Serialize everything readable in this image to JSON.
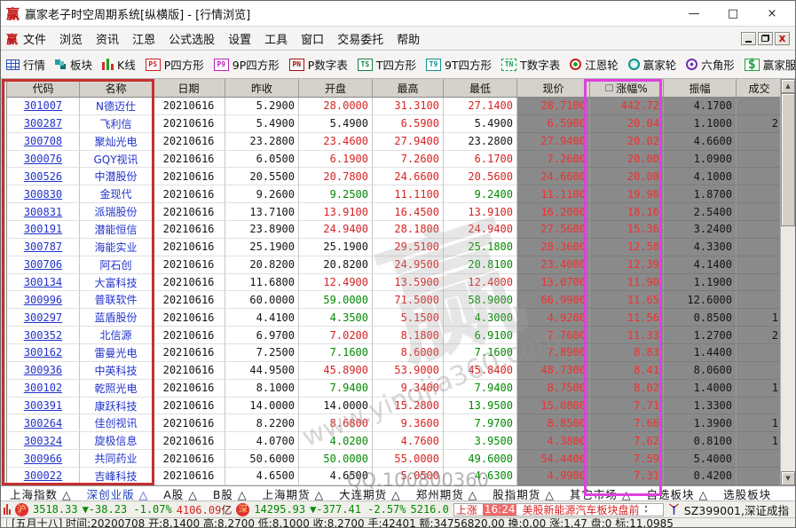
{
  "window": {
    "icon_glyph": "赢",
    "title": "赢家老子时空周期系统[纵横版] - [行情浏览]",
    "controls": {
      "minimize": "—",
      "maximize": "□",
      "close": "×"
    }
  },
  "menu": {
    "items": [
      "文件",
      "浏览",
      "资讯",
      "江恩",
      "公式选股",
      "设置",
      "工具",
      "窗口",
      "交易委托",
      "帮助"
    ]
  },
  "toolbar": {
    "items": [
      {
        "icon": "quotes-grid-icon",
        "style": "i-grid",
        "text": "",
        "label": "行情"
      },
      {
        "icon": "blocks-icon",
        "style": "i-blocks",
        "text": "",
        "label": "板块"
      },
      {
        "icon": "kline-icon",
        "style": "i-candle",
        "text": "",
        "label": "K线"
      },
      {
        "icon": "ps-square-icon",
        "style": "i-ps",
        "text": "PS",
        "label": "P四方形"
      },
      {
        "icon": "p9-square-icon",
        "style": "i-p9",
        "text": "P9",
        "label": "9P四方形"
      },
      {
        "icon": "pn-table-icon",
        "style": "i-pn",
        "text": "PN",
        "label": "P数字表"
      },
      {
        "icon": "ts-square-icon",
        "style": "i-ts",
        "text": "TS",
        "label": "T四方形"
      },
      {
        "icon": "t9-square-icon",
        "style": "i-t9",
        "text": "T9",
        "label": "9T四方形"
      },
      {
        "icon": "tn-table-icon",
        "style": "i-tn",
        "text": "TN",
        "label": "T数字表"
      },
      {
        "icon": "gann-wheel-icon",
        "style": "i-wheel",
        "text": "",
        "label": "江恩轮"
      },
      {
        "icon": "winner-wheel-icon",
        "style": "i-bwheel",
        "text": "",
        "label": "赢家轮"
      },
      {
        "icon": "hexagon-icon",
        "style": "i-hex",
        "text": "",
        "label": "六角形"
      },
      {
        "icon": "dollar-icon",
        "style": "i-dollar",
        "text": "$",
        "label": "赢家服务"
      }
    ]
  },
  "table": {
    "headers": [
      "代码",
      "名称",
      "日期",
      "昨收",
      "开盘",
      "最高",
      "最低",
      "现价",
      "涨幅%",
      "振幅",
      "成交"
    ],
    "rows": [
      {
        "code": "301007",
        "name": "N德迈仕",
        "date": "20210616",
        "prev": "5.2900",
        "open": "28.0000",
        "open_c": "r",
        "high": "31.3100",
        "low": "27.1400",
        "low_c": "r",
        "price": "28.7100",
        "chg": "442.72",
        "amp": "4.1700",
        "vol": ""
      },
      {
        "code": "300287",
        "name": "飞利信",
        "date": "20210616",
        "prev": "5.4900",
        "open": "5.4900",
        "open_c": "k",
        "high": "6.5900",
        "low": "5.4900",
        "low_c": "k",
        "price": "6.5900",
        "chg": "20.04",
        "amp": "1.1000",
        "vol": "2"
      },
      {
        "code": "300708",
        "name": "聚灿光电",
        "date": "20210616",
        "prev": "23.2800",
        "open": "23.4600",
        "open_c": "r",
        "high": "27.9400",
        "low": "23.2800",
        "low_c": "k",
        "price": "27.9400",
        "chg": "20.02",
        "amp": "4.6600",
        "vol": ""
      },
      {
        "code": "300076",
        "name": "GQY视讯",
        "date": "20210616",
        "prev": "6.0500",
        "open": "6.1900",
        "open_c": "r",
        "high": "7.2600",
        "low": "6.1700",
        "low_c": "r",
        "price": "7.2600",
        "chg": "20.00",
        "amp": "1.0900",
        "vol": ""
      },
      {
        "code": "300526",
        "name": "中潜股份",
        "date": "20210616",
        "prev": "20.5500",
        "open": "20.7800",
        "open_c": "r",
        "high": "24.6600",
        "low": "20.5600",
        "low_c": "r",
        "price": "24.6600",
        "chg": "20.00",
        "amp": "4.1000",
        "vol": ""
      },
      {
        "code": "300830",
        "name": "金现代",
        "date": "20210616",
        "prev": "9.2600",
        "open": "9.2500",
        "open_c": "g",
        "high": "11.1100",
        "low": "9.2400",
        "low_c": "g",
        "price": "11.1100",
        "chg": "19.98",
        "amp": "1.8700",
        "vol": ""
      },
      {
        "code": "300831",
        "name": "派瑞股份",
        "date": "20210616",
        "prev": "13.7100",
        "open": "13.9100",
        "open_c": "r",
        "high": "16.4500",
        "low": "13.9100",
        "low_c": "r",
        "price": "16.2000",
        "chg": "18.16",
        "amp": "2.5400",
        "vol": ""
      },
      {
        "code": "300191",
        "name": "潜能恒信",
        "date": "20210616",
        "prev": "23.8900",
        "open": "24.9400",
        "open_c": "r",
        "high": "28.1800",
        "low": "24.9400",
        "low_c": "r",
        "price": "27.5600",
        "chg": "15.36",
        "amp": "3.2400",
        "vol": ""
      },
      {
        "code": "300787",
        "name": "海能实业",
        "date": "20210616",
        "prev": "25.1900",
        "open": "25.1900",
        "open_c": "k",
        "high": "29.5100",
        "low": "25.1800",
        "low_c": "g",
        "price": "28.3600",
        "chg": "12.58",
        "amp": "4.3300",
        "vol": ""
      },
      {
        "code": "300706",
        "name": "阿石创",
        "date": "20210616",
        "prev": "20.8200",
        "open": "20.8200",
        "open_c": "k",
        "high": "24.9500",
        "low": "20.8100",
        "low_c": "g",
        "price": "23.4000",
        "chg": "12.39",
        "amp": "4.1400",
        "vol": ""
      },
      {
        "code": "300134",
        "name": "大富科技",
        "date": "20210616",
        "prev": "11.6800",
        "open": "12.4900",
        "open_c": "r",
        "high": "13.5900",
        "low": "12.4000",
        "low_c": "r",
        "price": "13.0700",
        "chg": "11.90",
        "amp": "1.1900",
        "vol": ""
      },
      {
        "code": "300996",
        "name": "普联软件",
        "date": "20210616",
        "prev": "60.0000",
        "open": "59.0000",
        "open_c": "g",
        "high": "71.5000",
        "low": "58.9000",
        "low_c": "g",
        "price": "66.9900",
        "chg": "11.65",
        "amp": "12.6000",
        "vol": ""
      },
      {
        "code": "300297",
        "name": "蓝盾股份",
        "date": "20210616",
        "prev": "4.4100",
        "open": "4.3500",
        "open_c": "g",
        "high": "5.1500",
        "low": "4.3000",
        "low_c": "g",
        "price": "4.9200",
        "chg": "11.56",
        "amp": "0.8500",
        "vol": "1"
      },
      {
        "code": "300352",
        "name": "北信源",
        "date": "20210616",
        "prev": "6.9700",
        "open": "7.0200",
        "open_c": "r",
        "high": "8.1800",
        "low": "6.9100",
        "low_c": "g",
        "price": "7.7600",
        "chg": "11.33",
        "amp": "1.2700",
        "vol": "2"
      },
      {
        "code": "300162",
        "name": "雷曼光电",
        "date": "20210616",
        "prev": "7.2500",
        "open": "7.1600",
        "open_c": "g",
        "high": "8.6000",
        "low": "7.1600",
        "low_c": "g",
        "price": "7.8900",
        "chg": "8.83",
        "amp": "1.4400",
        "vol": ""
      },
      {
        "code": "300936",
        "name": "中英科技",
        "date": "20210616",
        "prev": "44.9500",
        "open": "45.8900",
        "open_c": "r",
        "high": "53.9000",
        "low": "45.8400",
        "low_c": "r",
        "price": "48.7300",
        "chg": "8.41",
        "amp": "8.0600",
        "vol": ""
      },
      {
        "code": "300102",
        "name": "乾照光电",
        "date": "20210616",
        "prev": "8.1000",
        "open": "7.9400",
        "open_c": "g",
        "high": "9.3400",
        "low": "7.9400",
        "low_c": "g",
        "price": "8.7500",
        "chg": "8.02",
        "amp": "1.4000",
        "vol": "1"
      },
      {
        "code": "300391",
        "name": "康跃科技",
        "date": "20210616",
        "prev": "14.0000",
        "open": "14.0000",
        "open_c": "k",
        "high": "15.2800",
        "low": "13.9500",
        "low_c": "g",
        "price": "15.0800",
        "chg": "7.71",
        "amp": "1.3300",
        "vol": ""
      },
      {
        "code": "300264",
        "name": "佳创视讯",
        "date": "20210616",
        "prev": "8.2200",
        "open": "8.6800",
        "open_c": "r",
        "high": "9.3600",
        "low": "7.9700",
        "low_c": "g",
        "price": "8.8500",
        "chg": "7.66",
        "amp": "1.3900",
        "vol": "1"
      },
      {
        "code": "300324",
        "name": "旋极信息",
        "date": "20210616",
        "prev": "4.0700",
        "open": "4.0200",
        "open_c": "g",
        "high": "4.7600",
        "low": "3.9500",
        "low_c": "g",
        "price": "4.3800",
        "chg": "7.62",
        "amp": "0.8100",
        "vol": "1"
      },
      {
        "code": "300966",
        "name": "共同药业",
        "date": "20210616",
        "prev": "50.6000",
        "open": "50.0000",
        "open_c": "g",
        "high": "55.0000",
        "low": "49.6000",
        "low_c": "g",
        "price": "54.4400",
        "chg": "7.59",
        "amp": "5.4000",
        "vol": ""
      },
      {
        "code": "300022",
        "name": "吉峰科技",
        "date": "20210616",
        "prev": "4.6500",
        "open": "4.6500",
        "open_c": "k",
        "high": "5.0500",
        "low": "4.6300",
        "low_c": "g",
        "price": "4.9900",
        "chg": "7.31",
        "amp": "0.4200",
        "vol": ""
      }
    ]
  },
  "scrollbar": {
    "up": "▲",
    "down": "▼"
  },
  "market_tabs": {
    "items": [
      "上海指数 △",
      "深创业版 △",
      "A股 △",
      "B股 △",
      "上海期货 △",
      "大连期货 △",
      "郑州期货 △",
      "股指期货 △",
      "其它市场 △",
      "自选板块 △",
      "选股板块"
    ],
    "selected": "深创业版 △"
  },
  "index_bar": {
    "sh": {
      "icon": "沪",
      "value": "3518.33",
      "change": "▼-38.23 -1.07%",
      "amount": "4106.09",
      "unit": "亿"
    },
    "sz": {
      "icon": "深",
      "value": "14295.93",
      "change": "▼-377.41 -2.57%",
      "amount": "5216.0"
    },
    "ticker": {
      "lead": "上涨",
      "time": "16:24",
      "text": "美股新能源汽车板块盘前"
    },
    "security": "SZ399001,深证成指"
  },
  "info_bar": {
    "text": "[五月十八] 时间:20200708 开:8.1400 高:8.2700 低:8.1000 收:8.2700 手:42401 额:34756820.00 换:0.00 涨:1.47 盘:0 标:11.0985"
  },
  "watermarks": {
    "wm1": "赢",
    "wm2": "www.yingjia360.com",
    "wm3": "QQ.100800360"
  },
  "colors": {
    "up_red": "#d82222",
    "down_green": "#008a00",
    "link_blue": "#2233cc",
    "gray_column_bg": "#8a8a8a",
    "annotation_red": "#c43030",
    "annotation_magenta": "#e040e0",
    "header_bg": "#d6d2cb",
    "time_highlight_bg": "#ef6a6a"
  }
}
